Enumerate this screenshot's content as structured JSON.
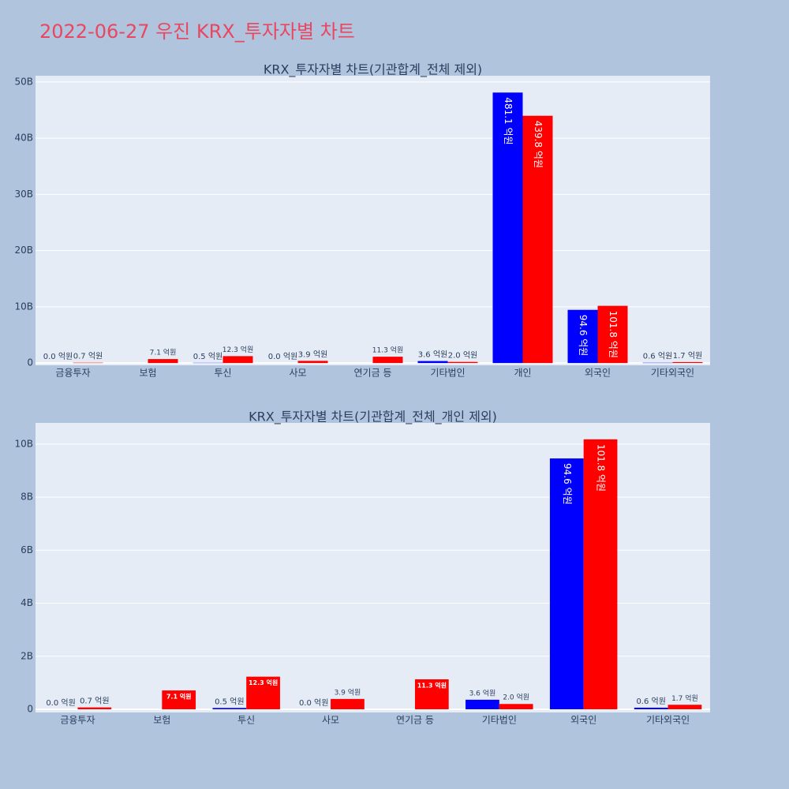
{
  "title": "2022-06-27 우진 KRX_투자자별 차트",
  "chart_data": [
    {
      "type": "bar",
      "title": "KRX_투자자별 차트(기관합계_전체 제외)",
      "categories": [
        "금융투자",
        "보험",
        "투신",
        "사모",
        "연기금 등",
        "기타법인",
        "개인",
        "외국인",
        "기타외국인"
      ],
      "series": [
        {
          "color": "#0000ff",
          "values": [
            0,
            null,
            50000000,
            0,
            null,
            360000000,
            48110000000,
            9460000000,
            60000000
          ],
          "value_labels": [
            "0.0 억원",
            null,
            "0.5 억원",
            "0.0 억원",
            null,
            "3.6 억원",
            "481.1 억원",
            "94.6 억원",
            "0.6 억원"
          ]
        },
        {
          "color": "#ff0000",
          "values": [
            70000000,
            710000000,
            1230000000,
            390000000,
            1130000000,
            200000000,
            43980000000,
            10180000000,
            170000000
          ],
          "value_labels": [
            "0.7 억원",
            "7.1 억원",
            "12.3 억원",
            "3.9 억원",
            "11.3 억원",
            "2.0 억원",
            "439.8 억원",
            "101.8 억원",
            "1.7 억원"
          ]
        }
      ],
      "ylim": [
        -400000000,
        51100000000
      ],
      "yticks": [
        0,
        {
          "value": 10000000000,
          "label": "10B"
        },
        {
          "value": 20000000000,
          "label": "20B"
        },
        {
          "value": 30000000000,
          "label": "30B"
        },
        {
          "value": 40000000000,
          "label": "40B"
        },
        {
          "value": 50000000000,
          "label": "50B"
        }
      ],
      "grid": true
    },
    {
      "type": "bar",
      "title": "KRX_투자자별 차트(기관합계_전체_개인 제외)",
      "categories": [
        "금융투자",
        "보험",
        "투신",
        "사모",
        "연기금 등",
        "기타법인",
        "외국인",
        "기타외국인"
      ],
      "series": [
        {
          "color": "#0000ff",
          "values": [
            0,
            null,
            50000000,
            0,
            null,
            360000000,
            9460000000,
            60000000
          ],
          "value_labels": [
            "0.0 억원",
            null,
            "0.5 억원",
            "0.0 억원",
            null,
            "3.6 억원",
            "94.6 억원",
            "0.6 억원"
          ]
        },
        {
          "color": "#ff0000",
          "values": [
            70000000,
            710000000,
            1230000000,
            390000000,
            1130000000,
            200000000,
            10180000000,
            170000000
          ],
          "value_labels": [
            "0.7 억원",
            "7.1 억원",
            "12.3 억원",
            "3.9 억원",
            "11.3 억원",
            "2.0 억원",
            "101.8 억원",
            "1.7 억원"
          ]
        }
      ],
      "ylim": [
        -120000000,
        10800000000
      ],
      "yticks": [
        0,
        {
          "value": 2000000000,
          "label": "2B"
        },
        {
          "value": 4000000000,
          "label": "4B"
        },
        {
          "value": 6000000000,
          "label": "6B"
        },
        {
          "value": 8000000000,
          "label": "8B"
        },
        {
          "value": 10000000000,
          "label": "10B"
        }
      ],
      "grid": true
    }
  ]
}
